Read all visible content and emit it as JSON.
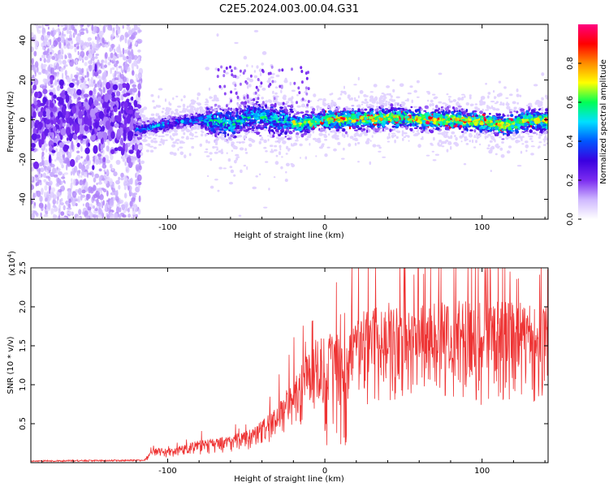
{
  "title": "C2E5.2024.003.00.04.G31",
  "chart_data": [
    {
      "type": "heatmap",
      "xlabel": "Height of straight line (km)",
      "ylabel": "Frequency (Hz)",
      "xlim": [
        -187,
        142
      ],
      "ylim": [
        -50,
        48
      ],
      "xticks": [
        -100,
        0,
        100
      ],
      "yticks": [
        -40,
        -20,
        0,
        20,
        40
      ],
      "colorbar": {
        "label": "Normalized spectral amplitude",
        "range": [
          0,
          1
        ],
        "ticks": [
          0.0,
          0.2,
          0.4,
          0.6,
          0.8
        ],
        "tick_labels": [
          "0.0",
          "0.2",
          "0.4",
          "0.6",
          "0.8"
        ],
        "stops": [
          "#ffffff",
          "#cfb8ff",
          "#7b2cf0",
          "#3a00e0",
          "#0055ff",
          "#00e0ff",
          "#00ff55",
          "#ffff00",
          "#ff8c00",
          "#ff0000",
          "#ff0080"
        ]
      },
      "band_center_hz": [
        [
          -187,
          0
        ],
        [
          -140,
          0
        ],
        [
          -120,
          -5
        ],
        [
          -100,
          -2
        ],
        [
          -80,
          0
        ],
        [
          -60,
          -2
        ],
        [
          -45,
          2
        ],
        [
          -30,
          0
        ],
        [
          -15,
          -2
        ],
        [
          0,
          0
        ],
        [
          50,
          1
        ],
        [
          60,
          0
        ],
        [
          80,
          0
        ],
        [
          100,
          -1
        ],
        [
          115,
          -3
        ],
        [
          130,
          0
        ],
        [
          142,
          -1
        ]
      ]
    },
    {
      "type": "line",
      "xlabel": "Height of straight line (km)",
      "ylabel": "SNR (10 * v/v)",
      "y_multiplier": "(x10",
      "y_multiplier_exp": "4",
      "y_multiplier_close": ")",
      "xlim": [
        -187,
        142
      ],
      "ylim": [
        0,
        2.5
      ],
      "xticks": [
        -100,
        0,
        100
      ],
      "yticks": [
        0.5,
        1.0,
        1.5,
        2.0,
        2.5
      ],
      "ytick_labels": [
        "0.5",
        "1.0",
        "1.5",
        "2.0",
        "2.5"
      ],
      "series": [
        {
          "color": "#ee3333",
          "envelope": [
            [
              -187,
              0.02
            ],
            [
              -115,
              0.03
            ],
            [
              -108,
              0.18
            ],
            [
              -100,
              0.15
            ],
            [
              -80,
              0.25
            ],
            [
              -60,
              0.3
            ],
            [
              -45,
              0.4
            ],
            [
              -35,
              0.55
            ],
            [
              -25,
              0.8
            ],
            [
              -15,
              1.1
            ],
            [
              -5,
              1.4
            ],
            [
              5,
              1.5
            ],
            [
              12,
              1.35
            ],
            [
              15,
              1.45
            ],
            [
              25,
              1.7
            ],
            [
              40,
              1.8
            ],
            [
              60,
              1.75
            ],
            [
              80,
              1.82
            ],
            [
              100,
              1.8
            ],
            [
              120,
              1.8
            ],
            [
              142,
              1.75
            ]
          ]
        }
      ]
    }
  ]
}
